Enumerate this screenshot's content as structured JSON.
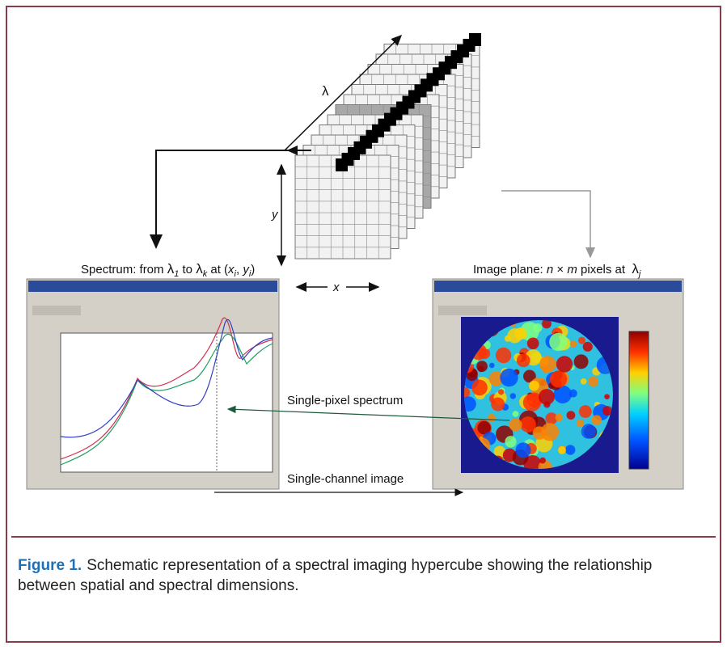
{
  "figure": {
    "cube_axes": {
      "lambda": "λ",
      "y": "y",
      "x": "x"
    },
    "spectrum_label": [
      "Spectrum: from ",
      "λ",
      "1",
      " to ",
      "λ",
      "k",
      " at (",
      "x",
      "i",
      ", ",
      "y",
      "i",
      ")"
    ],
    "image_plane_label": [
      "Image plane: ",
      "n",
      " × ",
      "m",
      " pixels at  ",
      "λ",
      "j"
    ],
    "annotations": [
      "Single-pixel spectrum",
      "Single-channel image"
    ],
    "caption": {
      "label": "Figure 1.",
      "text": [
        "Schematic representation of a spectral imaging hypercube showing the relationship",
        "between spatial and spectral dimensions."
      ]
    }
  }
}
